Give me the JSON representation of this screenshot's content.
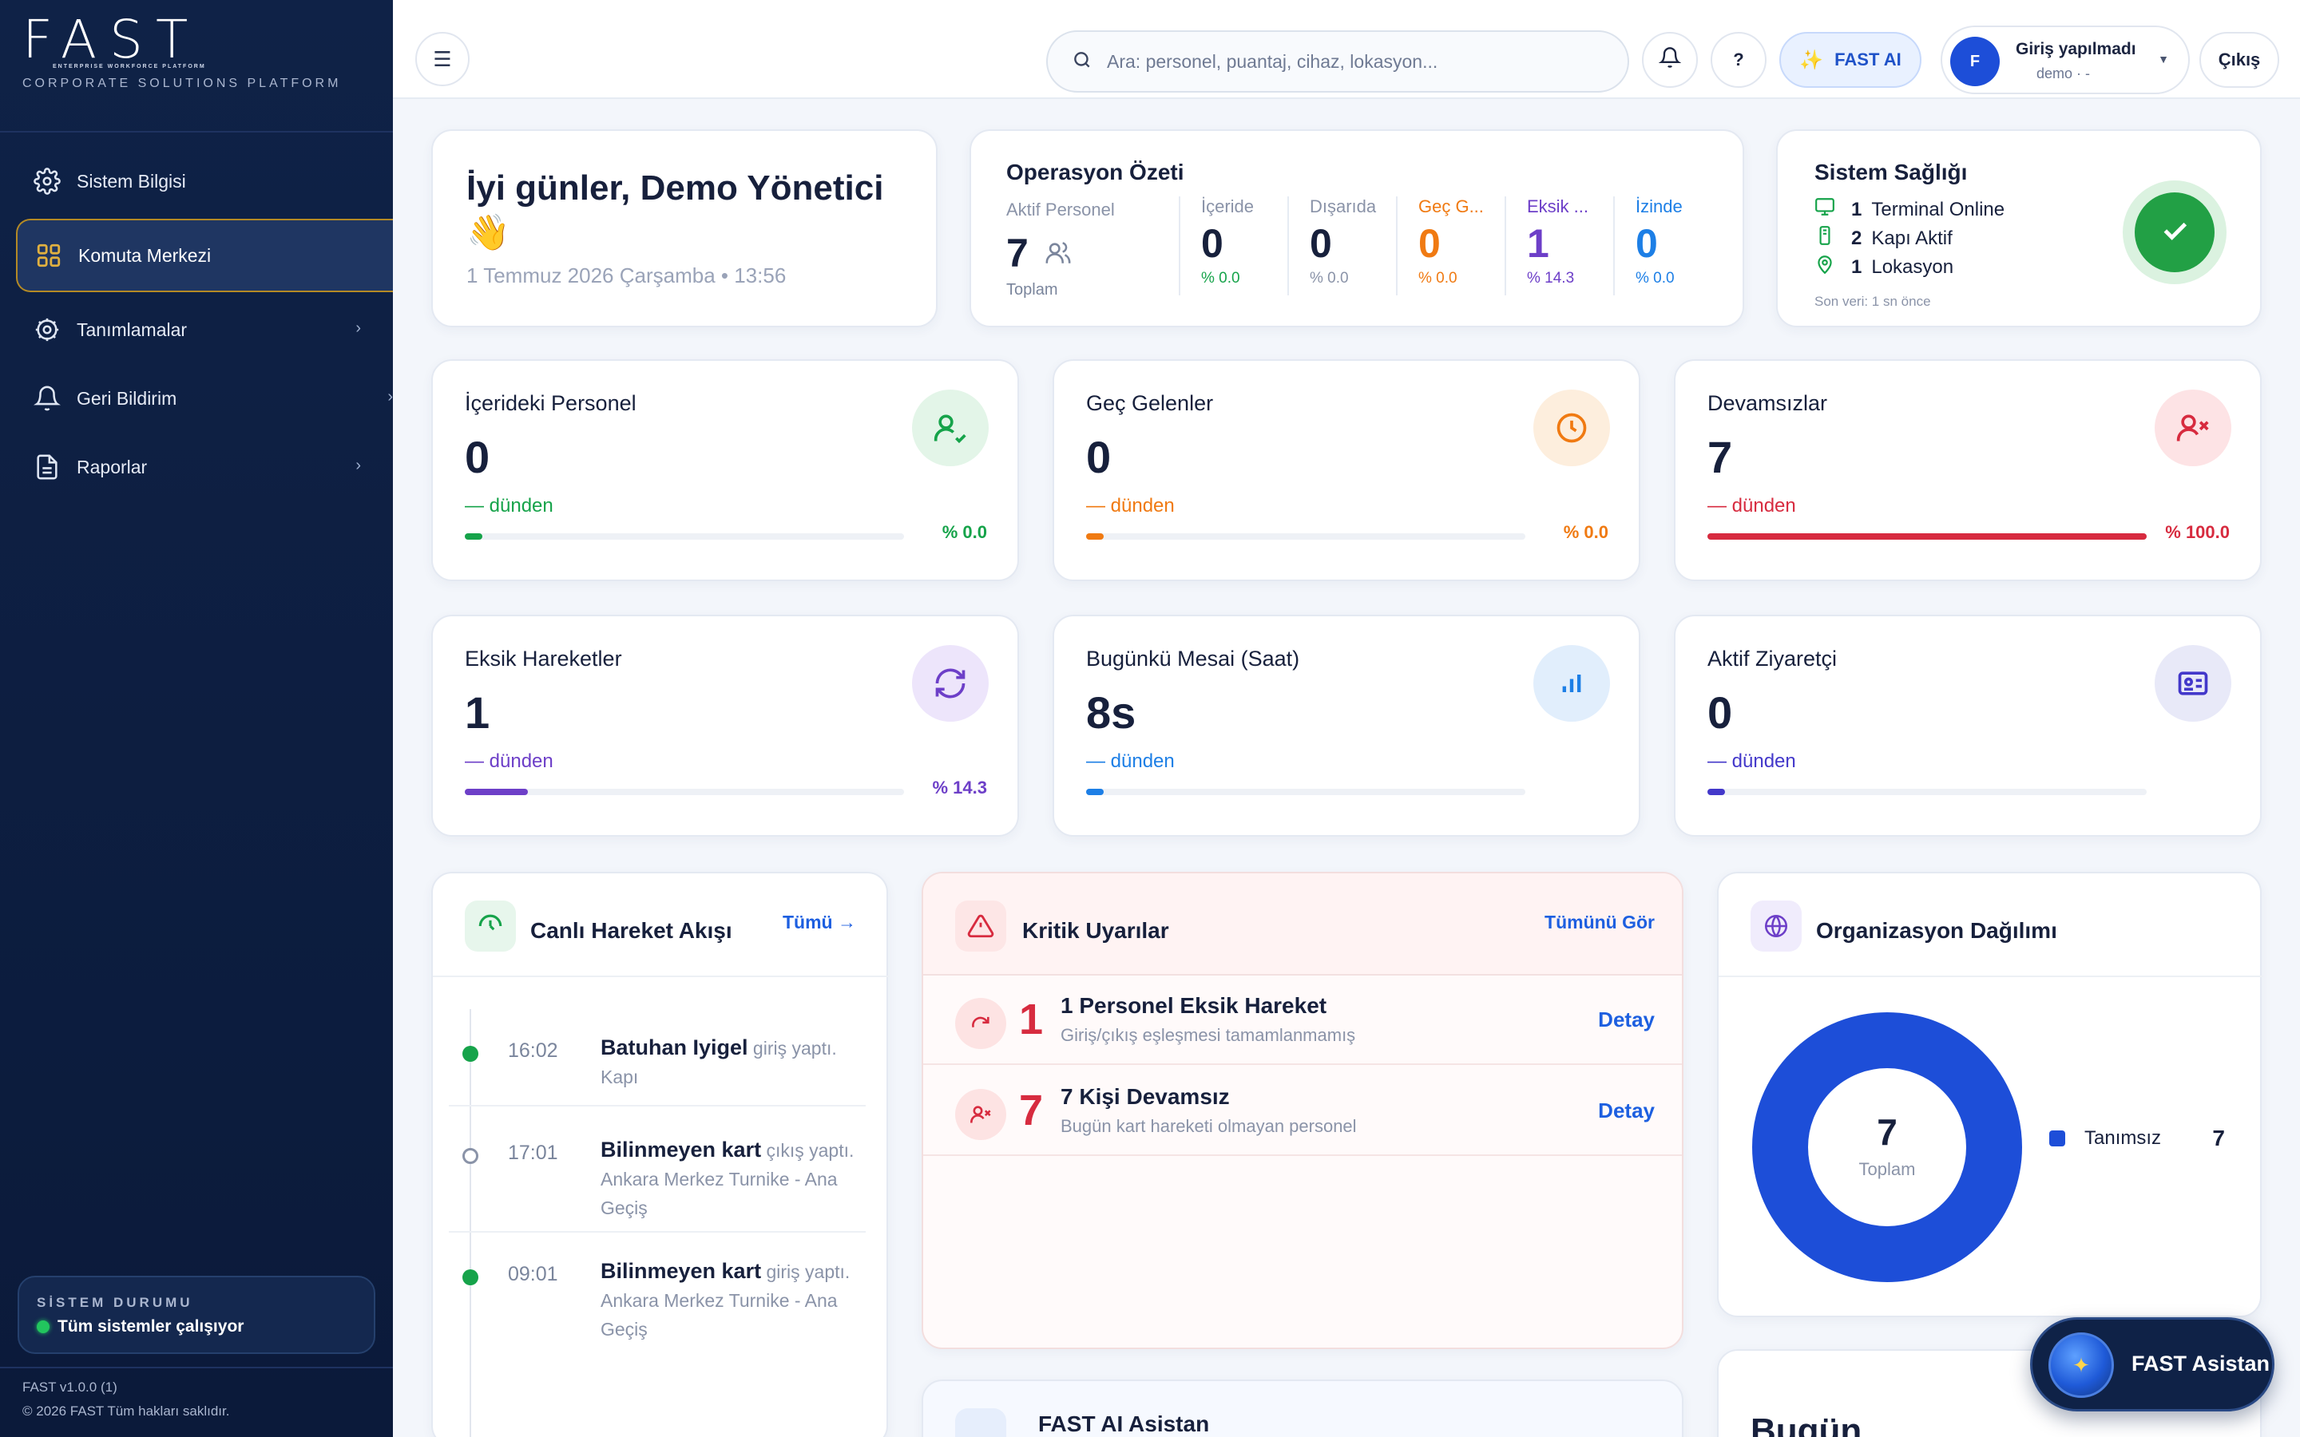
{
  "sidebar": {
    "logo": "FAST",
    "logo_tagline": "ENTERPRISE WORKFORCE PLATFORM",
    "subtitle": "CORPORATE SOLUTIONS PLATFORM",
    "items": [
      {
        "label": "Sistem Bilgisi",
        "icon": "gear-icon"
      },
      {
        "label": "Komuta Merkezi",
        "icon": "grid-icon",
        "active": true
      },
      {
        "label": "Tanımlamalar",
        "icon": "gear-icon",
        "chevron": "›"
      },
      {
        "label": "Geri Bildirim",
        "icon": "bell-icon",
        "chevron": "›"
      },
      {
        "label": "Raporlar",
        "icon": "document-icon",
        "chevron": "›"
      }
    ],
    "status": {
      "title": "SİSTEM DURUMU",
      "text": "Tüm sistemler çalışıyor"
    },
    "footer_version": "FAST v1.0.0 (1)",
    "footer_copy": "© 2026 FAST Tüm  hakları saklıdır."
  },
  "topbar": {
    "menu_icon": "☰",
    "search_placeholder": "Ara: personel, puantaj, cihaz, lokasyon...",
    "help_label": "?",
    "ai_label": "FAST AI",
    "user_initial": "F",
    "user_title": "Giriş yapılmadı",
    "user_sub": "demo · -",
    "logout_label": "Çıkış"
  },
  "greeting": {
    "title": "İyi günler, Demo Yönetici 👋",
    "date": "1 Temmuz 2026 Çarşamba • 13:56"
  },
  "operations": {
    "title": "Operasyon Özeti",
    "active_label": "Aktif Personel",
    "active_value": "7",
    "active_sub": "Toplam",
    "columns": [
      {
        "label": "İçeride",
        "value": "0",
        "pct": "% 0.0",
        "color": "#17203c",
        "pct_color": "#16a34a",
        "label_color": "#8a93a8"
      },
      {
        "label": "Dışarıda",
        "value": "0",
        "pct": "% 0.0",
        "color": "#17203c",
        "pct_color": "#8a93a8",
        "label_color": "#8a93a8"
      },
      {
        "label": "Geç G...",
        "value": "0",
        "pct": "% 0.0",
        "color": "#f07a12",
        "pct_color": "#f07a12",
        "label_color": "#f07a12"
      },
      {
        "label": "Eksik ...",
        "value": "1",
        "pct": "% 14.3",
        "color": "#6d3fc8",
        "pct_color": "#6d3fc8",
        "label_color": "#6d3fc8"
      },
      {
        "label": "İzinde",
        "value": "0",
        "pct": "% 0.0",
        "color": "#1d7fe6",
        "pct_color": "#1d7fe6",
        "label_color": "#1d7fe6"
      }
    ]
  },
  "health": {
    "title": "Sistem Sağlığı",
    "rows": [
      {
        "count": "1",
        "label": "Terminal Online",
        "icon": "monitor-icon"
      },
      {
        "count": "2",
        "label": "Kapı Aktif",
        "icon": "door-icon"
      },
      {
        "count": "1",
        "label": "Lokasyon",
        "icon": "pin-icon"
      }
    ],
    "since": "Son veri: 1 sn önce"
  },
  "stats": [
    {
      "title": "İçerideki Personel",
      "value": "0",
      "delta": "— dünden",
      "pct": "% 0.0",
      "progress": 0.02,
      "color": "#16a34a",
      "bg": "#e3f5e8",
      "icon": "user-check-icon"
    },
    {
      "title": "Geç Gelenler",
      "value": "0",
      "delta": "— dünden",
      "pct": "% 0.0",
      "progress": 0.02,
      "color": "#f07a12",
      "bg": "#fdeedd",
      "icon": "clock-icon"
    },
    {
      "title": "Devamsızlar",
      "value": "7",
      "delta": "— dünden",
      "pct": "% 100.0",
      "progress": 1.0,
      "color": "#d72b3f",
      "bg": "#fde3e5",
      "icon": "user-x-icon"
    },
    {
      "title": "Eksik Hareketler",
      "value": "1",
      "delta": "— dünden",
      "pct": "% 14.3",
      "progress": 0.143,
      "color": "#6d3fc8",
      "bg": "#ede5fb",
      "icon": "refresh-icon"
    },
    {
      "title": "Bugünkü Mesai (Saat)",
      "value": "8s",
      "delta": "— dünden",
      "pct": "",
      "progress": 0.02,
      "color": "#1d7fe6",
      "bg": "#e1eefc",
      "icon": "bar-chart-icon"
    },
    {
      "title": "Aktif Ziyaretçi",
      "value": "0",
      "delta": "— dünden",
      "pct": "",
      "progress": 0.02,
      "color": "#4338ca",
      "bg": "#e8e9f8",
      "icon": "id-card-icon"
    }
  ],
  "flow": {
    "title": "Canlı Hareket Akışı",
    "all_label": "Tümü →",
    "items": [
      {
        "time": "16:02",
        "name": "Batuhan Iyigel",
        "detail": " giriş yaptı.  Kapı",
        "dot": "#16a34a"
      },
      {
        "time": "17:01",
        "name": "Bilinmeyen kart",
        "detail": " çıkış yaptı.  Ankara Merkez Turnike - Ana Geçiş",
        "dot": "hollow"
      },
      {
        "time": "09:01",
        "name": "Bilinmeyen kart",
        "detail": " giriş yaptı.  Ankara Merkez Turnike - Ana Geçiş",
        "dot": "#16a34a"
      }
    ]
  },
  "alerts": {
    "title": "Kritik Uyarılar",
    "see_all": "Tümünü Gör",
    "items": [
      {
        "num": "1",
        "title": "1 Personel Eksik Hareket",
        "sub": "Giriş/çıkış eşleşmesi tamamlanmamış",
        "action": "Detay",
        "icon": "redo-icon"
      },
      {
        "num": "7",
        "title": "7 Kişi Devamsız",
        "sub": "Bugün kart hareketi olmayan personel",
        "action": "Detay",
        "icon": "user-x-icon"
      }
    ]
  },
  "ai_panel": {
    "title": "FAST AI Asistan"
  },
  "org": {
    "title": "Organizasyon Dağılımı",
    "center_value": "7",
    "center_label": "Toplam",
    "legend": [
      {
        "name": "Tanımsız",
        "value": "7"
      }
    ]
  },
  "today": {
    "title": "Bugün"
  },
  "assistant": {
    "label": "FAST Asistan"
  }
}
